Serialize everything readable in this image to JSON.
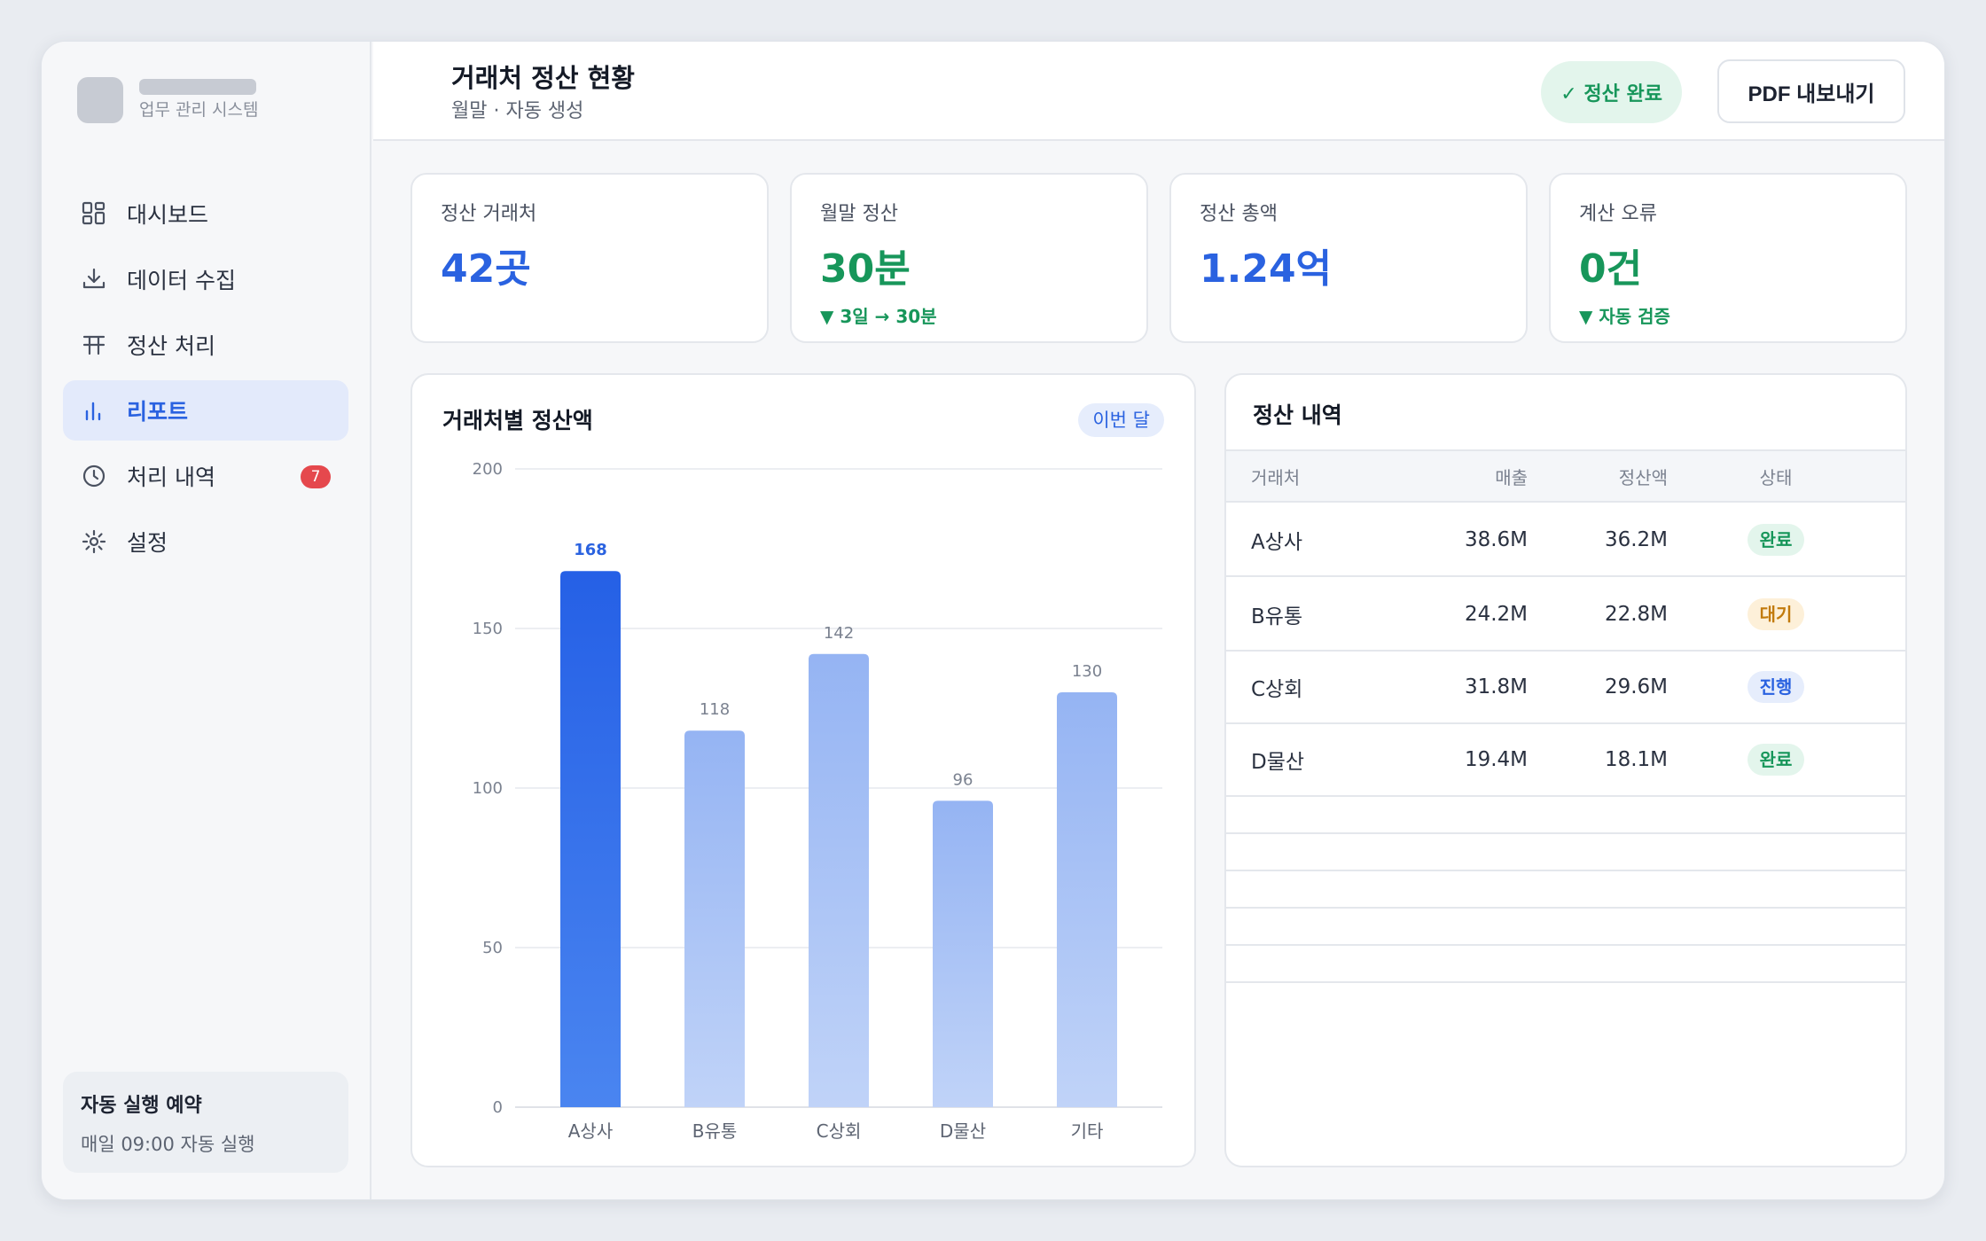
{
  "brand": {
    "subtitle": "업무 관리 시스템"
  },
  "sidebar": {
    "items": [
      {
        "label": "대시보드",
        "icon": "dashboard-icon"
      },
      {
        "label": "데이터 수집",
        "icon": "download-icon"
      },
      {
        "label": "정산 처리",
        "icon": "table-icon"
      },
      {
        "label": "리포트",
        "icon": "bar-chart-icon",
        "active": true
      },
      {
        "label": "처리 내역",
        "icon": "clock-icon",
        "badge": "7"
      },
      {
        "label": "설정",
        "icon": "gear-icon"
      }
    ],
    "schedule": {
      "title": "자동 실행 예약",
      "subtitle": "매일 09:00 자동 실행"
    }
  },
  "header": {
    "title": "거래처 정산 현황",
    "subtitle": "월말 · 자동 생성",
    "status": "✓ 정산 완료",
    "export_label": "PDF 내보내기"
  },
  "kpis": [
    {
      "label": "정산 거래처",
      "value": "42곳",
      "color": "#2a62e0",
      "delta": ""
    },
    {
      "label": "월말 정산",
      "value": "30분",
      "color": "#17965a",
      "delta": "▼ 3일 → 30분"
    },
    {
      "label": "정산 총액",
      "value": "1.24억",
      "color": "#2a62e0",
      "delta": ""
    },
    {
      "label": "계산 오류",
      "value": "0건",
      "color": "#17965a",
      "delta": "▼ 자동 검증"
    }
  ],
  "chart": {
    "title": "거래처별 정산액",
    "period_chip": "이번 달"
  },
  "chart_data": {
    "type": "bar",
    "categories": [
      "A상사",
      "B유통",
      "C상회",
      "D물산",
      "기타"
    ],
    "values": [
      168,
      118,
      142,
      96,
      130
    ],
    "ylim": [
      0,
      200
    ],
    "yticks": [
      0,
      50,
      100,
      150,
      200
    ],
    "highlight_index": 0,
    "colors": {
      "highlight": "#2a62e0",
      "normal": "#9bb8f4",
      "label_highlight": "#2a62e0",
      "label_normal": "#7b8290"
    },
    "grid": true
  },
  "table": {
    "title": "정산 내역",
    "headers": [
      "거래처",
      "매출",
      "정산액",
      "상태"
    ],
    "rows": [
      {
        "name": "A상사",
        "sales": "38.6M",
        "settle": "36.2M",
        "status": "완료",
        "status_type": "done"
      },
      {
        "name": "B유통",
        "sales": "24.2M",
        "settle": "22.8M",
        "status": "대기",
        "status_type": "wait"
      },
      {
        "name": "C상회",
        "sales": "31.8M",
        "settle": "29.6M",
        "status": "진행",
        "status_type": "prog"
      },
      {
        "name": "D물산",
        "sales": "19.4M",
        "settle": "18.1M",
        "status": "완료",
        "status_type": "done"
      }
    ]
  }
}
